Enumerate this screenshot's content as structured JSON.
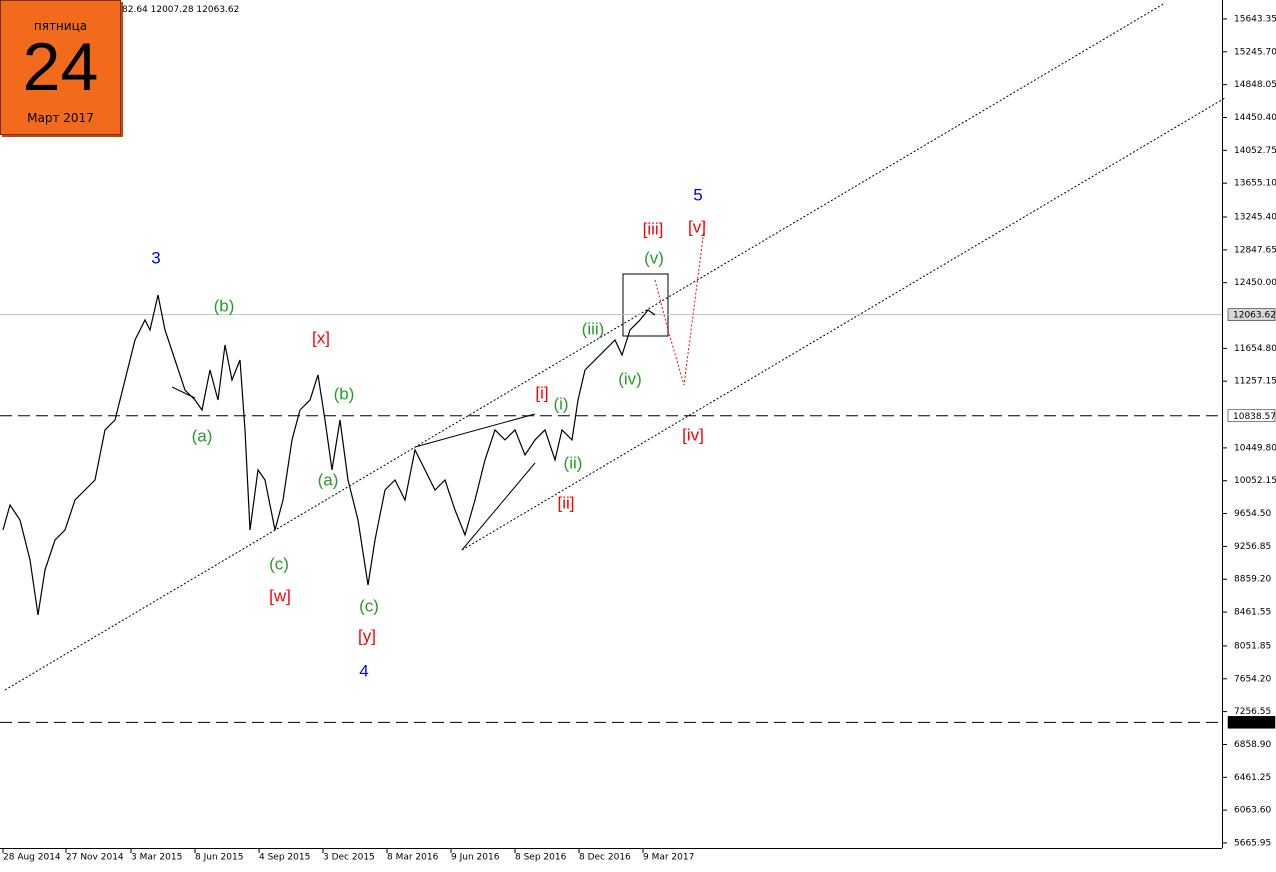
{
  "calendar": {
    "weekday": "пятница",
    "day": "24",
    "month": "Март 2017"
  },
  "ohlc_text": "82.64 12007.28 12063.62",
  "chart_data": {
    "type": "line",
    "color": "#000000",
    "x": [
      0,
      7,
      17,
      27,
      35,
      42,
      52,
      62,
      72,
      82,
      92,
      102,
      112,
      122,
      132,
      142,
      147,
      155,
      162,
      172,
      182,
      192,
      199,
      207,
      215,
      222,
      229,
      237,
      242,
      247,
      255,
      262,
      272,
      280,
      289,
      297,
      307,
      315,
      322,
      329,
      337,
      345,
      355,
      365,
      372,
      382,
      392,
      402,
      412,
      422,
      432,
      442,
      452,
      462,
      472,
      482,
      492,
      502,
      512,
      522,
      532,
      542,
      552,
      559,
      569,
      575,
      582,
      592,
      602,
      612,
      619,
      627,
      637,
      645,
      652
    ],
    "series": [
      {
        "values": [
          9456,
          9758,
          9577,
          9093,
          8427,
          8972,
          9335,
          9456,
          9819,
          9940,
          10061,
          10667,
          10788,
          11272,
          11756,
          11998,
          11877,
          12301,
          11877,
          11514,
          11151,
          11030,
          10909,
          11393,
          11030,
          11696,
          11272,
          11514,
          10667,
          9456,
          10183,
          10061,
          9456,
          9819,
          10546,
          10909,
          11030,
          11333,
          10788,
          10183,
          10788,
          10061,
          9577,
          8790,
          9335,
          9940,
          10061,
          9819,
          10425,
          10183,
          9940,
          10061,
          9698,
          9396,
          9819,
          10304,
          10667,
          10546,
          10667,
          10364,
          10546,
          10667,
          10304,
          10667,
          10546,
          11030,
          11393,
          11514,
          11635,
          11756,
          11575,
          11877,
          11998,
          12119,
          12059
        ]
      }
    ],
    "xlim": [
      -3,
      1219
    ],
    "ylim": [
      5605,
      15873
    ],
    "xticks": [
      {
        "value": 0,
        "label": "28 Aug 2014"
      },
      {
        "value": 63,
        "label": "27 Nov 2014"
      },
      {
        "value": 128,
        "label": "3 Mar 2015"
      },
      {
        "value": 192,
        "label": "8 Jun 2015"
      },
      {
        "value": 256,
        "label": "4 Sep 2015"
      },
      {
        "value": 320,
        "label": "3 Dec 2015"
      },
      {
        "value": 384,
        "label": "8 Mar 2016"
      },
      {
        "value": 448,
        "label": "9 Jun 2016"
      },
      {
        "value": 512,
        "label": "8 Sep 2016"
      },
      {
        "value": 576,
        "label": "8 Dec 2016"
      },
      {
        "value": 640,
        "label": "9 Mar 2017"
      }
    ],
    "yticks": [
      15643.35,
      {
        "value": 15245.7,
        "label": "15245.70"
      },
      {
        "value": 14848.05,
        "label": "14848.05"
      },
      {
        "value": 14450.4,
        "label": "14450.40"
      },
      14052.75,
      {
        "value": 13655.1,
        "label": "13655.10"
      },
      {
        "value": 13245.4,
        "label": "13245.40"
      },
      12847.65,
      {
        "value": 12450,
        "label": "12450.00"
      },
      {
        "value": 11654.8,
        "label": "11654.80"
      },
      11257.15,
      {
        "value": 10449.8,
        "label": "10449.80"
      },
      10052.15,
      {
        "value": 9654.5,
        "label": "9654.50"
      },
      9256.85,
      {
        "value": 8859.2,
        "label": "8859.20"
      },
      8461.55,
      8051.85,
      {
        "value": 7654.2,
        "label": "7654.20"
      },
      7256.55,
      {
        "value": 6858.9,
        "label": "6858.90"
      },
      6461.25,
      {
        "value": 6063.6,
        "label": "6063.60"
      },
      5665.95
    ],
    "price_markers": [
      {
        "value": 12063.62,
        "style": "current"
      },
      {
        "value": 10838.57,
        "style": "level"
      },
      {
        "value": 7126.77,
        "style": "level-dark"
      }
    ],
    "annotations": [
      {
        "text": "3",
        "color": "#0000ff"
      },
      {
        "text": "(b)",
        "color": "#2a9a2a"
      },
      {
        "text": "(a)",
        "color": "#2a9a2a"
      },
      {
        "text": "(c)",
        "color": "#2a9a2a"
      },
      {
        "text": "[w]",
        "color": "#ff0000"
      },
      {
        "text": "[x]",
        "color": "#ff0000"
      },
      {
        "text": "(b)",
        "color": "#2a9a2a"
      },
      {
        "text": "(a)",
        "color": "#2a9a2a"
      },
      {
        "text": "(c)",
        "color": "#2a9a2a"
      },
      {
        "text": "[y]",
        "color": "#ff0000"
      },
      {
        "text": "4",
        "color": "#0000ff"
      },
      {
        "text": "[i]",
        "color": "#ff0000"
      },
      {
        "text": "(i)",
        "color": "#2a9a2a"
      },
      {
        "text": "(ii)",
        "color": "#2a9a2a"
      },
      {
        "text": "[ii]",
        "color": "#ff0000"
      },
      {
        "text": "(iii)",
        "color": "#2a9a2a"
      },
      {
        "text": "(iv)",
        "color": "#2a9a2a"
      },
      {
        "text": "(v)",
        "color": "#2a9a2a"
      },
      {
        "text": "[iii]",
        "color": "#ff0000"
      },
      {
        "text": "[v]",
        "color": "#ff0000"
      },
      {
        "text": "5",
        "color": "#0000ff"
      },
      {
        "text": "[iv]",
        "color": "#ff0000"
      }
    ]
  }
}
